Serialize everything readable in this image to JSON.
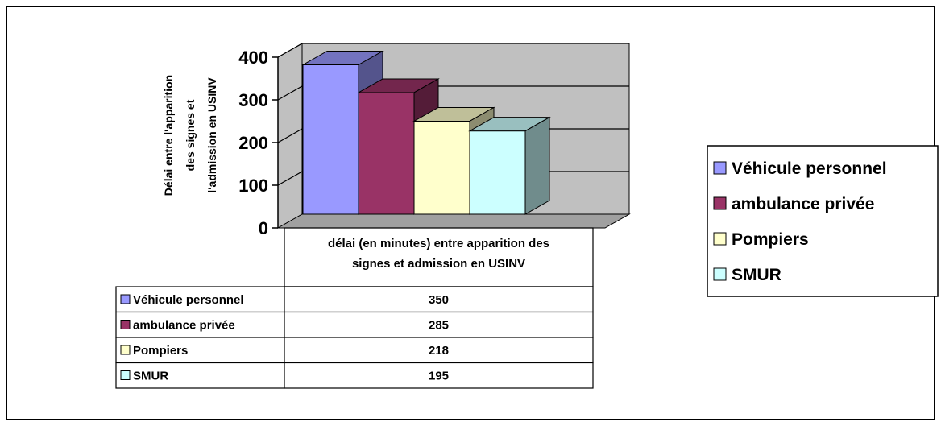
{
  "chart_data": {
    "type": "bar",
    "ylabel": "Délai entre l'apparition des signes et l'admission en USINV",
    "category_label": "délai (en minutes) entre apparition des signes et admission en USINV",
    "ylim": [
      0,
      400
    ],
    "yticks": [
      0,
      100,
      200,
      300,
      400
    ],
    "grid": true,
    "legend_position": "right",
    "series": [
      {
        "name": "Véhicule personnel",
        "values": [
          350
        ],
        "color": "#9999ff"
      },
      {
        "name": "ambulance privée",
        "values": [
          285
        ],
        "color": "#993366"
      },
      {
        "name": "Pompiers",
        "values": [
          218
        ],
        "color": "#ffffcc"
      },
      {
        "name": "SMUR",
        "values": [
          195
        ],
        "color": "#ccffff"
      }
    ],
    "data_table": {
      "header": [
        "délai (en minutes) entre apparition des",
        "signes et admission en USINV"
      ],
      "rows": [
        {
          "label": "Véhicule personnel",
          "value": "350"
        },
        {
          "label": "ambulance privée",
          "value": "285"
        },
        {
          "label": "Pompiers",
          "value": "218"
        },
        {
          "label": "SMUR",
          "value": "195"
        }
      ]
    }
  },
  "ylabel_lines": [
    "Délai entre l'apparition",
    "des signes et",
    "l'admission en USINV"
  ]
}
